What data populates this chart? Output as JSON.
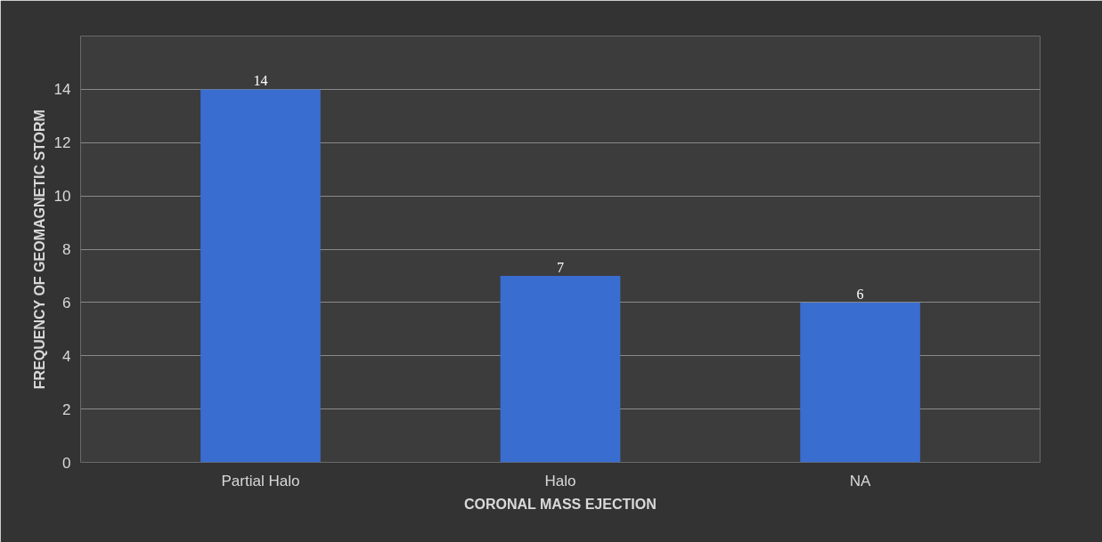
{
  "chart_data": {
    "type": "bar",
    "xlabel": "CORONAL MASS EJECTION",
    "ylabel": "FREQUENCY OF GEOMAGNETIC STORM",
    "categories": [
      "Partial Halo",
      "Halo",
      "NA"
    ],
    "values": [
      14,
      7,
      6
    ],
    "color": "#3a6dd0",
    "ylim": [
      0,
      16
    ],
    "yticks": [
      0,
      2,
      4,
      6,
      8,
      10,
      12,
      14,
      {
        "value": 16,
        "label": null
      }
    ],
    "grid": "y",
    "data_labels": true
  }
}
